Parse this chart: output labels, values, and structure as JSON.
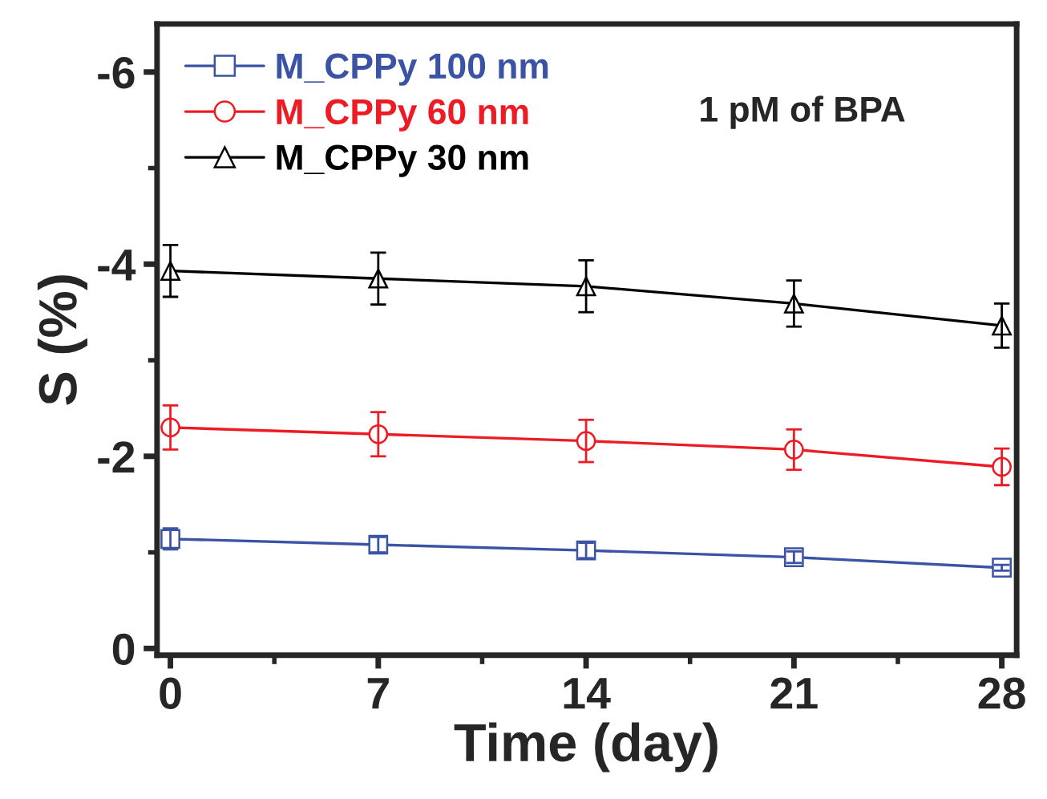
{
  "chart_data": {
    "type": "line",
    "xlabel": "Time (day)",
    "ylabel": "S (%)",
    "x": [
      0,
      7,
      14,
      21,
      28
    ],
    "xlim": [
      -0.45,
      28.5
    ],
    "xticks": [
      0,
      7,
      14,
      21,
      28
    ],
    "ylim": [
      0.07,
      -6.5
    ],
    "yticks": [
      0,
      -2,
      -4,
      -6
    ],
    "series": [
      {
        "name": "M_CPPy 100 nm",
        "color": "#3a53a4",
        "marker": "square",
        "values": [
          -1.14,
          -1.08,
          -1.02,
          -0.95,
          -0.84
        ],
        "errors": [
          0.11,
          0.08,
          0.08,
          0.06,
          0.03
        ]
      },
      {
        "name": "M_CPPy 60 nm",
        "color": "#ed1c24",
        "marker": "circle",
        "values": [
          -2.3,
          -2.23,
          -2.16,
          -2.07,
          -1.89
        ],
        "errors": [
          0.23,
          0.23,
          0.22,
          0.21,
          0.19
        ]
      },
      {
        "name": "M_CPPy 30 nm",
        "color": "#000000",
        "marker": "triangle",
        "values": [
          -3.93,
          -3.85,
          -3.77,
          -3.59,
          -3.36
        ],
        "errors": [
          0.27,
          0.27,
          0.27,
          0.24,
          0.23
        ]
      }
    ],
    "annotations": [
      "1 pM of BPA"
    ],
    "line_style": "solid",
    "legend": "top left",
    "grid": false
  }
}
